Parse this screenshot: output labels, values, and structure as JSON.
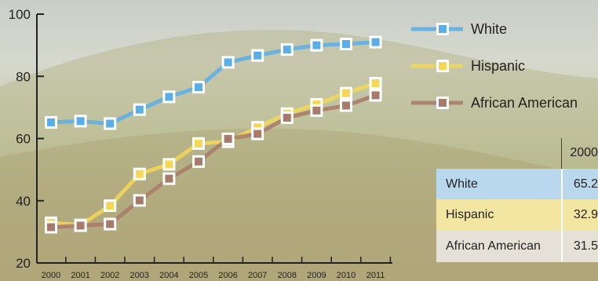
{
  "chart_data": {
    "type": "line",
    "x": [
      "2000",
      "2001",
      "2002",
      "2003",
      "2004",
      "2005",
      "2006",
      "2007",
      "2008",
      "2009",
      "2010",
      "2011"
    ],
    "ylim": [
      20,
      100
    ],
    "yticks": [
      20,
      40,
      60,
      80,
      100
    ],
    "series": [
      {
        "name": "White",
        "color": "#5aaee8",
        "values": [
          65.2,
          65.6,
          64.8,
          69.3,
          73.4,
          76.5,
          84.5,
          86.7,
          88.6,
          90.0,
          90.4,
          91.0
        ]
      },
      {
        "name": "Hispanic",
        "color": "#f5d857",
        "values": [
          32.9,
          32.2,
          38.4,
          48.6,
          51.7,
          58.4,
          59.0,
          63.6,
          68.0,
          71.0,
          74.6,
          77.8
        ]
      },
      {
        "name": "African American",
        "color": "#a87a6a",
        "values": [
          31.5,
          32.0,
          32.5,
          40.1,
          47.1,
          52.6,
          59.9,
          61.5,
          66.7,
          69.0,
          70.6,
          73.9
        ]
      }
    ],
    "legend_position": "top-right",
    "grid": false
  },
  "table": {
    "header_value": "2000",
    "rows": [
      {
        "label": "White",
        "value": "65.2"
      },
      {
        "label": "Hispanic",
        "value": "32.9"
      },
      {
        "label": "African American",
        "value": "31.5"
      }
    ]
  }
}
